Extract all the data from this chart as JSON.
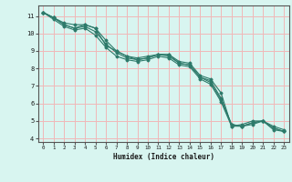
{
  "xlabel": "Humidex (Indice chaleur)",
  "ylabel": "",
  "bg_color": "#d8f5f0",
  "grid_color": "#f0b8b8",
  "line_color": "#2d7a6a",
  "xlim": [
    -0.5,
    23.5
  ],
  "ylim": [
    3.8,
    11.6
  ],
  "xticks": [
    0,
    1,
    2,
    3,
    4,
    5,
    6,
    7,
    8,
    9,
    10,
    11,
    12,
    13,
    14,
    15,
    16,
    17,
    18,
    19,
    20,
    21,
    22,
    23
  ],
  "yticks": [
    4,
    5,
    6,
    7,
    8,
    9,
    10,
    11
  ],
  "series": [
    [
      11.2,
      10.9,
      10.6,
      10.5,
      10.5,
      10.3,
      9.3,
      9.0,
      8.7,
      8.6,
      8.7,
      8.8,
      8.8,
      8.4,
      8.3,
      7.6,
      7.4,
      6.6,
      4.7,
      4.8,
      5.0,
      5.0,
      4.7,
      4.5
    ],
    [
      11.2,
      10.9,
      10.5,
      10.3,
      10.5,
      10.3,
      9.6,
      9.0,
      8.7,
      8.5,
      8.6,
      8.8,
      8.8,
      8.3,
      8.2,
      7.5,
      7.3,
      6.3,
      4.8,
      4.7,
      4.9,
      5.0,
      4.6,
      4.4
    ],
    [
      11.2,
      10.8,
      10.4,
      10.2,
      10.3,
      9.9,
      9.2,
      8.7,
      8.5,
      8.4,
      8.5,
      8.7,
      8.6,
      8.2,
      8.1,
      7.4,
      7.1,
      6.1,
      4.7,
      4.7,
      4.8,
      5.0,
      4.5,
      4.4
    ],
    [
      11.2,
      10.9,
      10.5,
      10.3,
      10.4,
      10.1,
      9.4,
      8.9,
      8.6,
      8.5,
      8.6,
      8.8,
      8.7,
      8.3,
      8.2,
      7.5,
      7.2,
      6.2,
      4.8,
      4.7,
      4.9,
      5.0,
      4.6,
      4.4
    ]
  ]
}
